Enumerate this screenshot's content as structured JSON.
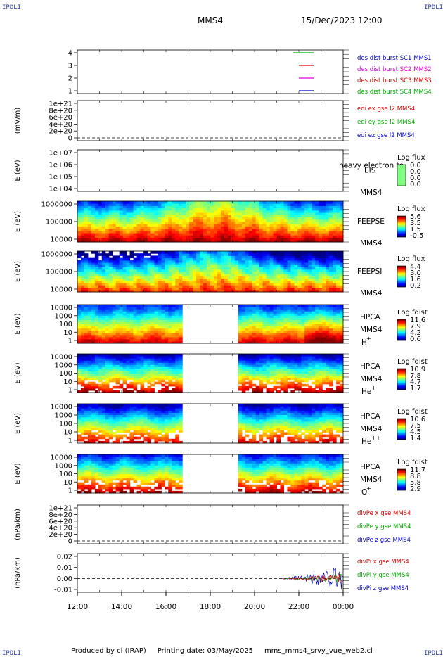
{
  "header": {
    "corner_label": "IPDLI",
    "spacecraft": "MMS4",
    "datetime": "15/Dec/2023 12:00"
  },
  "footer": {
    "produced_by": "Produced by cl (IRAP)",
    "printing_date": "Printing date: 03/May/2025",
    "file": "mms_mms4_srvy_vue_web2.cl"
  },
  "colors": {
    "mms1": "#0000c8",
    "mms2": "#e000e0",
    "mms3": "#e00000",
    "mms4": "#00b000"
  },
  "chart_data": [
    {
      "type": "line",
      "yticks": [
        "4",
        "3",
        "2",
        "1"
      ],
      "legend": [
        "des dist burst SC1 MMS1",
        "des dist burst SC2 MMS2",
        "des dist burst SC3 MMS3",
        "des dist burst SC4 MMS4"
      ],
      "series": [
        {
          "name": "des dist burst SC4 MMS4",
          "y": 4,
          "x_start": "21:45",
          "x_end": "22:40"
        },
        {
          "name": "des dist burst SC3 MMS3",
          "y": 3,
          "x_start": "22:00",
          "x_end": "22:40"
        },
        {
          "name": "des dist burst SC2 MMS2",
          "y": 2,
          "x_start": "22:00",
          "x_end": "22:40"
        },
        {
          "name": "des dist burst SC1 MMS1",
          "y": 1,
          "x_start": "22:00",
          "x_end": "22:40"
        }
      ]
    },
    {
      "type": "line",
      "ylabel": "(mV/m)",
      "yticks": [
        "1e+21",
        "8e+20",
        "6e+20",
        "4e+20",
        "2e+20",
        "0"
      ],
      "legend": [
        "edi ex gse l2 MMS4",
        "edi ey gse l2 MMS4",
        "edi ez gse l2 MMS4"
      ]
    },
    {
      "type": "heatmap",
      "ylabel": "E (eV)",
      "yticks": [
        "1e+07",
        "1e+06",
        "1e+05",
        "1e+04"
      ],
      "instrument": "EIS",
      "instrument_overlay": "heavy electron to",
      "spacecraft": "MMS4",
      "colorbar_title": "Log flux",
      "colorbar_ticks": [
        "0.0",
        "0.0",
        "0.0",
        "0.0"
      ]
    },
    {
      "type": "heatmap",
      "ylabel": "E (eV)",
      "yticks": [
        "1000000",
        "100000",
        "10000"
      ],
      "instrument": "FEEPSE",
      "spacecraft": "MMS4",
      "colorbar_title": "Log flux",
      "colorbar_ticks": [
        "5.6",
        "3.5",
        "1.5",
        "-0.5"
      ]
    },
    {
      "type": "heatmap",
      "ylabel": "E (eV)",
      "yticks": [
        "1000000",
        "100000",
        "10000"
      ],
      "instrument": "FEEPSI",
      "spacecraft": "MMS4",
      "colorbar_title": "Log flux",
      "colorbar_ticks": [
        "4.4",
        "3.0",
        "1.6",
        "0.2"
      ]
    },
    {
      "type": "heatmap",
      "ylabel": "E (eV)",
      "yticks": [
        "10000",
        "1000",
        "100",
        "10",
        "1"
      ],
      "instrument": "HPCA",
      "spacecraft": "MMS4",
      "species": "H",
      "species_sup": "+",
      "colorbar_title": "Log fdist",
      "colorbar_ticks": [
        "11.6",
        "7.9",
        "4.2",
        "0.6"
      ],
      "data_gap": [
        "16:45",
        "19:15"
      ]
    },
    {
      "type": "heatmap",
      "ylabel": "E (eV)",
      "yticks": [
        "10000",
        "1000",
        "100",
        "10",
        "1"
      ],
      "instrument": "HPCA",
      "spacecraft": "MMS4",
      "species": "He",
      "species_sup": "+",
      "colorbar_title": "Log fdist",
      "colorbar_ticks": [
        "10.9",
        "7.8",
        "4.7",
        "1.7"
      ],
      "data_gap": [
        "16:45",
        "19:15"
      ]
    },
    {
      "type": "heatmap",
      "ylabel": "E (eV)",
      "yticks": [
        "10000",
        "1000",
        "100",
        "10",
        "1"
      ],
      "instrument": "HPCA",
      "spacecraft": "MMS4",
      "species": "He",
      "species_sup": "++",
      "colorbar_title": "Log fdist",
      "colorbar_ticks": [
        "10.6",
        "7.5",
        "4.5",
        "1.4"
      ],
      "data_gap": [
        "16:45",
        "19:15"
      ]
    },
    {
      "type": "heatmap",
      "ylabel": "E (eV)",
      "yticks": [
        "10000",
        "1000",
        "100",
        "10",
        "1"
      ],
      "instrument": "HPCA",
      "spacecraft": "MMS4",
      "species": "O",
      "species_sup": "+",
      "colorbar_title": "Log fdist",
      "colorbar_ticks": [
        "11.7",
        "8.8",
        "5.8",
        "2.9"
      ],
      "data_gap": [
        "16:45",
        "19:15"
      ]
    },
    {
      "type": "line",
      "ylabel": "(nPa/km)",
      "yticks": [
        "1e+21",
        "8e+20",
        "6e+20",
        "4e+20",
        "2e+20",
        "0"
      ],
      "legend": [
        "divPe x gse MMS4",
        "divPe y gse MMS4",
        "divPe z gse MMS4"
      ]
    },
    {
      "type": "line",
      "ylabel": "(nPa/km)",
      "yticks": [
        "0.02",
        "0.01",
        "0.00",
        "-0.01"
      ],
      "ylim": [
        -0.015,
        0.025
      ],
      "legend": [
        "divPi x gse MMS4",
        "divPi y gse MMS4",
        "divPi z gse MMS4"
      ],
      "data_start": "21:15"
    }
  ],
  "xaxis": {
    "ticks": [
      "12:00",
      "14:00",
      "16:00",
      "18:00",
      "20:00",
      "22:00",
      "00:00"
    ]
  }
}
